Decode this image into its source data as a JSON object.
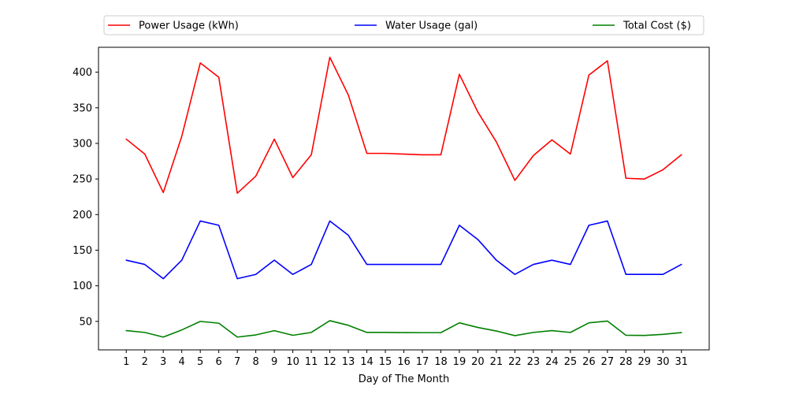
{
  "chart_data": {
    "type": "line",
    "title": "",
    "xlabel": "Day of The Month",
    "ylabel": "",
    "x": [
      1,
      2,
      3,
      4,
      5,
      6,
      7,
      8,
      9,
      10,
      11,
      12,
      13,
      14,
      15,
      16,
      17,
      18,
      19,
      20,
      21,
      22,
      23,
      24,
      25,
      26,
      27,
      28,
      29,
      30,
      31
    ],
    "xlim": [
      -0.5,
      32.5
    ],
    "ylim": [
      10,
      435
    ],
    "yticks": [
      50,
      100,
      150,
      200,
      250,
      300,
      350,
      400
    ],
    "grid": false,
    "legend_position": "top",
    "series": [
      {
        "name": "Power Usage (kWh)",
        "color": "#ff0000",
        "values": [
          306,
          285,
          231,
          310,
          413,
          393,
          230,
          254,
          306,
          252,
          284,
          421,
          368,
          286,
          286,
          285,
          284,
          284,
          397,
          344,
          302,
          248,
          283,
          305,
          285,
          396,
          416,
          251,
          250,
          263,
          284
        ]
      },
      {
        "name": "Water Usage (gal)",
        "color": "#0000ff",
        "values": [
          136,
          130,
          110,
          136,
          191,
          185,
          110,
          116,
          136,
          116,
          130,
          191,
          171,
          130,
          130,
          130,
          130,
          130,
          185,
          165,
          136,
          116,
          130,
          136,
          130,
          185,
          191,
          116,
          116,
          116,
          130
        ]
      },
      {
        "name": "Total Cost ($)",
        "color": "#008000",
        "values": [
          37,
          34.5,
          28,
          38,
          50,
          47.5,
          28,
          31,
          37,
          30.5,
          34.5,
          51,
          44.5,
          34.5,
          34.5,
          34.3,
          34.2,
          34.2,
          48,
          41.5,
          36.5,
          30,
          34.5,
          37,
          34.5,
          48,
          50.5,
          30.5,
          30.3,
          31.8,
          34.3
        ]
      }
    ]
  }
}
